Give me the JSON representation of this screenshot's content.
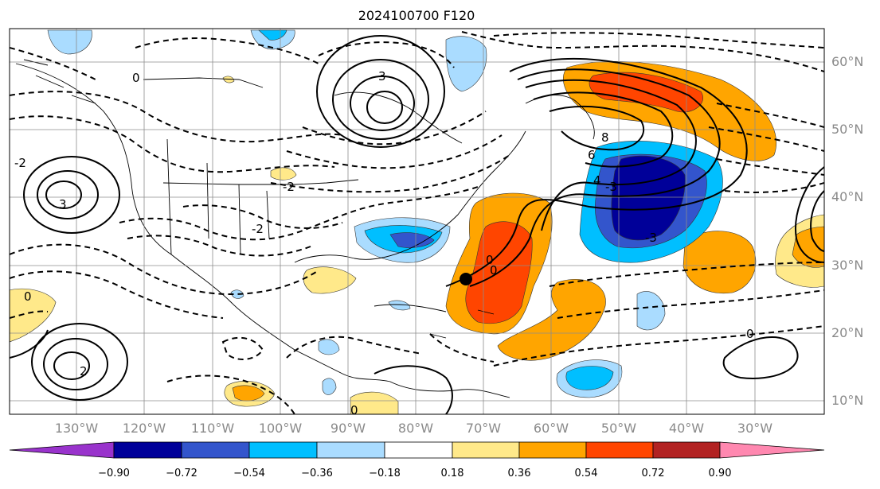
{
  "title": "2024100700 F120",
  "lat_labels": [
    "60°N",
    "50°N",
    "40°N",
    "30°N",
    "20°N",
    "10°N"
  ],
  "lon_labels": [
    "130°W",
    "120°W",
    "110°W",
    "100°W",
    "90°W",
    "80°W",
    "70°W",
    "60°W",
    "50°W",
    "40°W",
    "30°W"
  ],
  "colorbar": {
    "ticks": [
      "−0.90",
      "−0.72",
      "−0.54",
      "−0.36",
      "−0.18",
      "0.18",
      "0.36",
      "0.54",
      "0.72",
      "0.90"
    ],
    "colors": [
      "#9933cc",
      "#000099",
      "#3355cc",
      "#00bfff",
      "#aadcff",
      "#ffffff",
      "#ffe98a",
      "#ffa500",
      "#ff4500",
      "#b22222",
      "#ff88b0"
    ]
  },
  "contour_labels": [
    "0",
    "2",
    "3",
    "-2",
    "-3",
    "8",
    "6",
    "4"
  ],
  "storm_marker": "black-dot"
}
